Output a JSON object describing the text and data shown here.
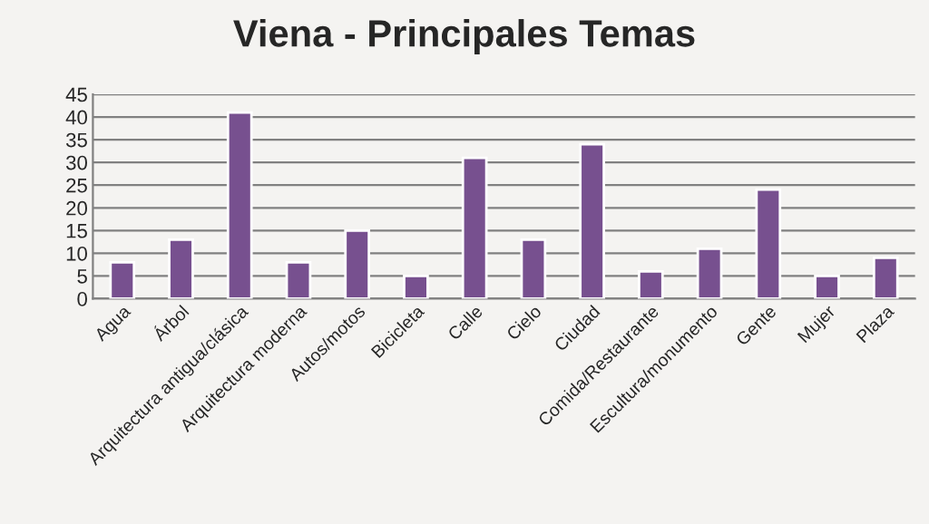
{
  "chart_data": {
    "type": "bar",
    "title": "Viena - Principales Temas",
    "categories": [
      "Agua",
      "Árbol",
      "Arquitectura antigua/clásica",
      "Arquitectura moderna",
      "Autos/motos",
      "Bicicleta",
      "Calle",
      "Cielo",
      "Ciudad",
      "Comida/Restaurante",
      "Escultura/monumento",
      "Gente",
      "Mujer",
      "Plaza"
    ],
    "values": [
      8,
      13,
      41,
      8,
      15,
      5,
      31,
      13,
      34,
      6,
      11,
      24,
      5,
      9
    ],
    "color": "#77508f",
    "ylim": [
      0,
      45
    ],
    "yticks": [
      0,
      5,
      10,
      15,
      20,
      25,
      30,
      35,
      40,
      45
    ],
    "grid": "y",
    "legend": false
  }
}
